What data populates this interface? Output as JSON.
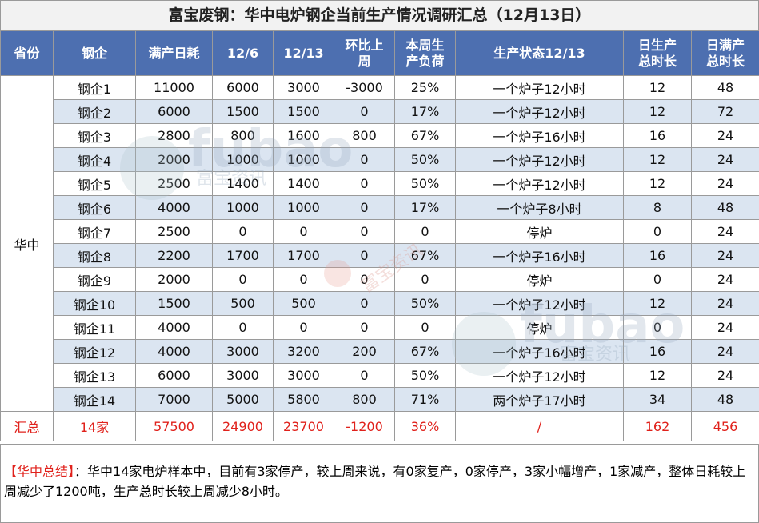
{
  "title": "富宝废钢：华中电炉钢企当前生产情况调研汇总（12月13日）",
  "headers": [
    "省份",
    "钢企",
    "满产日耗",
    "12/6",
    "12/13",
    "环比上周",
    "本周生产负荷",
    "生产状态12/13",
    "日生产总时长",
    "日满产总时长"
  ],
  "province": "华中",
  "rows": [
    [
      "钢企1",
      "11000",
      "6000",
      "3000",
      "-3000",
      "25%",
      "一个炉子12小时",
      "12",
      "48"
    ],
    [
      "钢企2",
      "6000",
      "1500",
      "1500",
      "0",
      "17%",
      "一个炉子12小时",
      "12",
      "72"
    ],
    [
      "钢企3",
      "2800",
      "800",
      "1600",
      "800",
      "67%",
      "一个炉子16小时",
      "16",
      "24"
    ],
    [
      "钢企4",
      "2000",
      "1000",
      "1000",
      "0",
      "50%",
      "一个炉子12小时",
      "12",
      "24"
    ],
    [
      "钢企5",
      "2500",
      "1400",
      "1400",
      "0",
      "50%",
      "一个炉子12小时",
      "12",
      "24"
    ],
    [
      "钢企6",
      "4000",
      "1000",
      "1000",
      "0",
      "17%",
      "一个炉子8小时",
      "8",
      "48"
    ],
    [
      "钢企7",
      "2500",
      "0",
      "0",
      "0",
      "0",
      "停炉",
      "0",
      "24"
    ],
    [
      "钢企8",
      "2200",
      "1700",
      "1700",
      "0",
      "67%",
      "一个炉子16小时",
      "16",
      "24"
    ],
    [
      "钢企9",
      "2000",
      "0",
      "0",
      "0",
      "0",
      "停炉",
      "0",
      "24"
    ],
    [
      "钢企10",
      "1500",
      "500",
      "500",
      "0",
      "50%",
      "一个炉子12小时",
      "12",
      "24"
    ],
    [
      "钢企11",
      "4000",
      "0",
      "0",
      "0",
      "0",
      "停炉",
      "0",
      "24"
    ],
    [
      "钢企12",
      "4000",
      "3000",
      "3200",
      "200",
      "67%",
      "一个炉子16小时",
      "16",
      "24"
    ],
    [
      "钢企13",
      "6000",
      "3000",
      "3000",
      "0",
      "50%",
      "一个炉子12小时",
      "12",
      "24"
    ],
    [
      "钢企14",
      "7000",
      "5000",
      "5800",
      "800",
      "71%",
      "两个炉子17小时",
      "34",
      "48"
    ]
  ],
  "total": [
    "汇总",
    "14家",
    "57500",
    "24900",
    "23700",
    "-1200",
    "36%",
    "/",
    "162",
    "456"
  ],
  "summary": {
    "label": "【华中总结】",
    "text": "：华中14家电炉样本中，目前有3家停产，较上周来说，有0家复产，0家停产，3家小幅增产，1家减产，整体日耗较上周减少了1200吨，生产总时长较上周减少8小时。"
  },
  "watermark": {
    "logo": "fubao",
    "name": "富宝资讯"
  },
  "colors": {
    "header_bg": "#4d6fb0",
    "alt_row": "#dbe5f1",
    "highlight": "#e0211b"
  }
}
